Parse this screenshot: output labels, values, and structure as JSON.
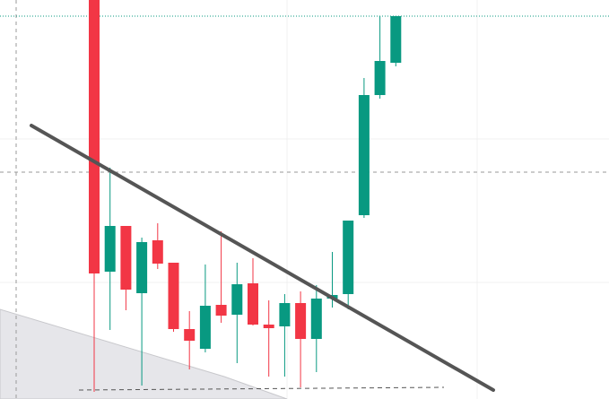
{
  "chart_data": {
    "type": "candlestick",
    "up_color": "#089981",
    "down_color": "#f23645",
    "ylim": [
      0,
      445
    ],
    "open": [
      455,
      142,
      193,
      118,
      177,
      152,
      78,
      56,
      105,
      94,
      129,
      83,
      81,
      107,
      67,
      112,
      117,
      205,
      339,
      375
    ],
    "high": [
      460,
      258,
      193,
      180,
      196,
      152,
      98,
      150,
      187,
      152,
      157,
      110,
      117,
      120,
      127,
      164,
      199,
      358,
      427,
      427
    ],
    "low": [
      8,
      77,
      99,
      15,
      145,
      75,
      33,
      52,
      85,
      40,
      82,
      25,
      25,
      13,
      30,
      102,
      100,
      202,
      335,
      371
    ],
    "close": [
      140,
      193,
      122,
      175,
      151,
      78,
      65,
      104,
      93,
      128,
      83,
      79,
      107,
      67,
      112,
      116,
      199,
      339,
      377,
      427
    ]
  }
}
